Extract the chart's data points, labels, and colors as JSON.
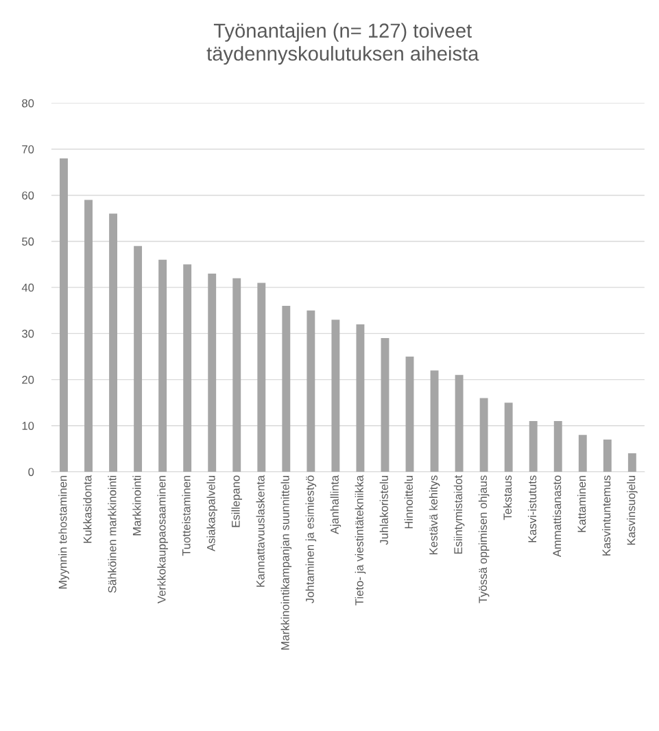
{
  "chart_data": {
    "type": "bar",
    "title": "Työnantajien (n= 127) toiveet\ntäydennyskoulutuksen aiheista",
    "categories": [
      "Myynnin tehostaminen",
      "Kukkasidonta",
      "Sähköinen markkinointi",
      "Markkinointi",
      "Verkkokauppaosaaminen",
      "Tuotteistaminen",
      "Asiakaspalvelu",
      "Esillepano",
      "Kannattavuuslaskenta",
      "Markkinointikampanjan suunnittelu",
      "Johtaminen ja esimiestyö",
      "Ajanhallinta",
      "Tieto- ja viestintätekniikka",
      "Juhlakoristelu",
      "Hinnoittelu",
      "Kestävä kehitys",
      "Esiintymistaidot",
      "Työssä oppimisen ohjaus",
      "Tekstaus",
      "Kasvi-istututs",
      "Ammattisanasto",
      "Kattaminen",
      "Kasvintuntemus",
      "Kasvinsuojelu"
    ],
    "values": [
      68,
      59,
      56,
      49,
      46,
      45,
      43,
      42,
      41,
      36,
      35,
      33,
      32,
      29,
      25,
      22,
      21,
      16,
      15,
      11,
      11,
      8,
      7,
      4
    ],
    "color": "#a5a5a5",
    "ylim": [
      0,
      80
    ],
    "yticks": [
      0,
      10,
      20,
      30,
      40,
      50,
      60,
      70,
      80
    ],
    "grid": "y"
  }
}
